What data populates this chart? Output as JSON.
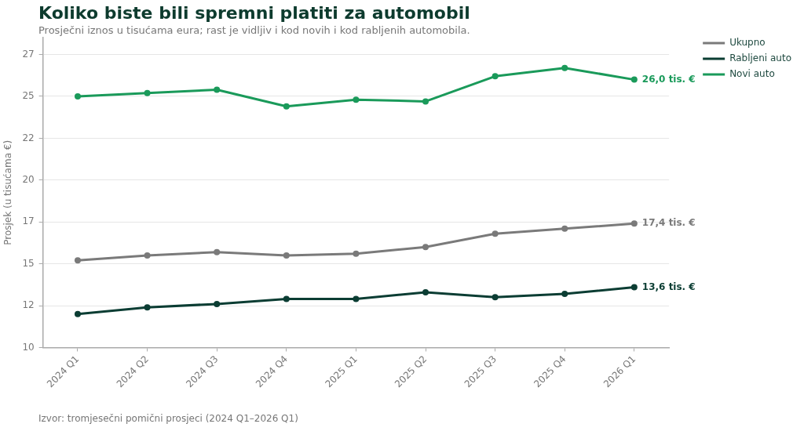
{
  "chart_data": {
    "type": "line",
    "title": "Koliko biste bili spremni platiti za automobil",
    "subtitle": "Prosječni iznos u tisućama eura; rast je vidljiv i kod novih i kod rabljenih automobila.",
    "ylabel": "Prosjek (u tisućama €)",
    "annotations": [
      "Izvor: tromjesečni pomični prosjeci (2024 Q1–2026 Q1)"
    ],
    "categories": [
      "2024 Q1",
      "2024 Q2",
      "2024 Q3",
      "2024 Q4",
      "2025 Q1",
      "2025 Q2",
      "2025 Q3",
      "2025 Q4",
      "2026 Q1"
    ],
    "series": [
      {
        "name": "Ukupno",
        "color": "#7a7a7a",
        "values": [
          15.2,
          15.5,
          15.7,
          15.5,
          15.6,
          16.0,
          16.8,
          17.1,
          17.4
        ],
        "value_labels": [
          null,
          null,
          null,
          null,
          null,
          null,
          null,
          null,
          "17,4 tis. €"
        ]
      },
      {
        "name": "Rabljeni auto",
        "color": "#0b3d33",
        "values": [
          12.0,
          12.4,
          12.6,
          12.9,
          12.9,
          13.3,
          13.0,
          13.2,
          13.6
        ],
        "value_labels": [
          null,
          null,
          null,
          null,
          null,
          null,
          null,
          null,
          "13,6 tis. €"
        ]
      },
      {
        "name": "Novi auto",
        "color": "#1a9a5a",
        "values": [
          25.0,
          25.2,
          25.4,
          24.4,
          24.8,
          24.7,
          26.2,
          26.7,
          26.0
        ],
        "value_labels": [
          null,
          null,
          null,
          null,
          null,
          null,
          null,
          null,
          "26,0 tis. €"
        ]
      }
    ],
    "ylim": [
      10,
      28.5
    ],
    "yticks": [
      10,
      {
        "value": 12.5,
        "label": "12"
      },
      15,
      {
        "value": 17.5,
        "label": "17"
      },
      20,
      {
        "value": 22.5,
        "label": "22"
      },
      25,
      {
        "value": 27.5,
        "label": "27"
      }
    ],
    "grid": "y",
    "legend": "top right",
    "marker": "circle",
    "line_style": "solid"
  }
}
